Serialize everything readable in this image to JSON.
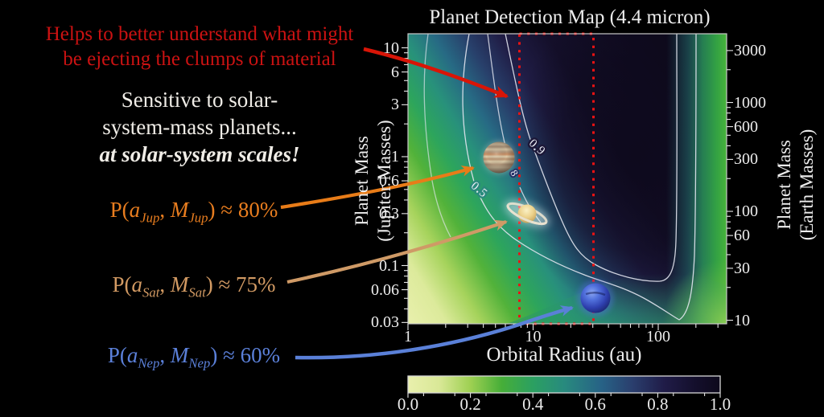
{
  "annotations": {
    "red_note": {
      "line1": "Helps to better understand what might",
      "line2": "be ejecting the clumps of material",
      "color": "#cb1212"
    },
    "white_note": {
      "line1": "Sensitive to solar-",
      "line2": "system-mass planets...",
      "line3": "at solar-system scales!"
    },
    "jupiter": {
      "p_open": "P(",
      "a_var": "a",
      "a_sub": "Jup",
      "comma": ", ",
      "m_var": "M",
      "m_sub": "Jup",
      "rest": ") ≈ 80%",
      "color": "#e87d1f"
    },
    "saturn": {
      "p_open": "P(",
      "a_var": "a",
      "a_sub": "Sat",
      "comma": ", ",
      "m_var": "M",
      "m_sub": "Sat",
      "rest": ") ≈ 75%",
      "color": "#d29a63"
    },
    "neptune": {
      "p_open": "P(",
      "a_var": "a",
      "a_sub": "Nep",
      "comma": ", ",
      "m_var": "M",
      "m_sub": "Nep",
      "rest": ") ≈ 60%",
      "color": "#5b80d9"
    }
  },
  "chart": {
    "title": "Planet Detection Map (4.4 micron)",
    "xlabel": "Orbital Radius (au)",
    "ylabel_left_line1": "Planet Mass",
    "ylabel_left_line2": "(Jupiter Masses)",
    "ylabel_right_line1": "Planet Mass",
    "ylabel_right_line2": "(Earth Masses)",
    "x_ticks": [
      "1",
      "10",
      "100"
    ],
    "y_left_ticks": [
      "10",
      "6",
      "3",
      "1",
      "0.6",
      "0.3",
      "0.1",
      "0.06",
      "0.03"
    ],
    "y_right_ticks": [
      "3000",
      "1000",
      "600",
      "300",
      "100",
      "60",
      "30",
      "10"
    ],
    "colorbar_ticks": [
      "0.0",
      "0.2",
      "0.4",
      "0.6",
      "0.8",
      "1.0"
    ],
    "contour_labels": {
      "outer": "0.5",
      "inner": "0.9",
      "partial": "8"
    }
  },
  "chart_data": {
    "type": "heatmap",
    "title": "Planet Detection Map (4.4 micron)",
    "value": "planet detection probability",
    "value_range": [
      0.0,
      1.0
    ],
    "colorbar_ticks": [
      0.0,
      0.2,
      0.4,
      0.6,
      0.8,
      1.0
    ],
    "xlabel": "Orbital Radius (au)",
    "x_scale": "log",
    "x_range_au": [
      1,
      350
    ],
    "x_ticks_au": [
      1,
      10,
      100
    ],
    "ylabel_left": "Planet Mass (Jupiter Masses)",
    "y_scale": "log",
    "y_range_mjup": [
      0.03,
      13.5
    ],
    "y_left_ticks_mjup": [
      10,
      6,
      3,
      1,
      0.6,
      0.3,
      0.1,
      0.06,
      0.03
    ],
    "ylabel_right": "Planet Mass (Earth Masses)",
    "y_right_ticks_mearth": [
      3000,
      1000,
      600,
      300,
      100,
      60,
      30,
      10
    ],
    "contour_levels_labeled": [
      0.5,
      0.9
    ],
    "highlight_region_au": [
      8,
      30
    ],
    "planet_markers": [
      {
        "name": "Jupiter",
        "orbital_radius_au": 5.2,
        "mass_mjup": 1.0,
        "detection_probability": 0.8
      },
      {
        "name": "Saturn",
        "orbital_radius_au": 9.5,
        "mass_mjup": 0.3,
        "detection_probability": 0.75
      },
      {
        "name": "Neptune",
        "orbital_radius_au": 30,
        "mass_mjup": 0.054,
        "detection_probability": 0.6
      }
    ],
    "structure_notes": "Detection probability low (pale yellow-green) at small orbital radii and low masses; dark basin of high probability (>0.9) from ~10-120 au for masses above ~0.1 Mjup; probability drops again (green) beyond ~150 au. Red dashed box highlights ~8-30 au over full mass range."
  }
}
